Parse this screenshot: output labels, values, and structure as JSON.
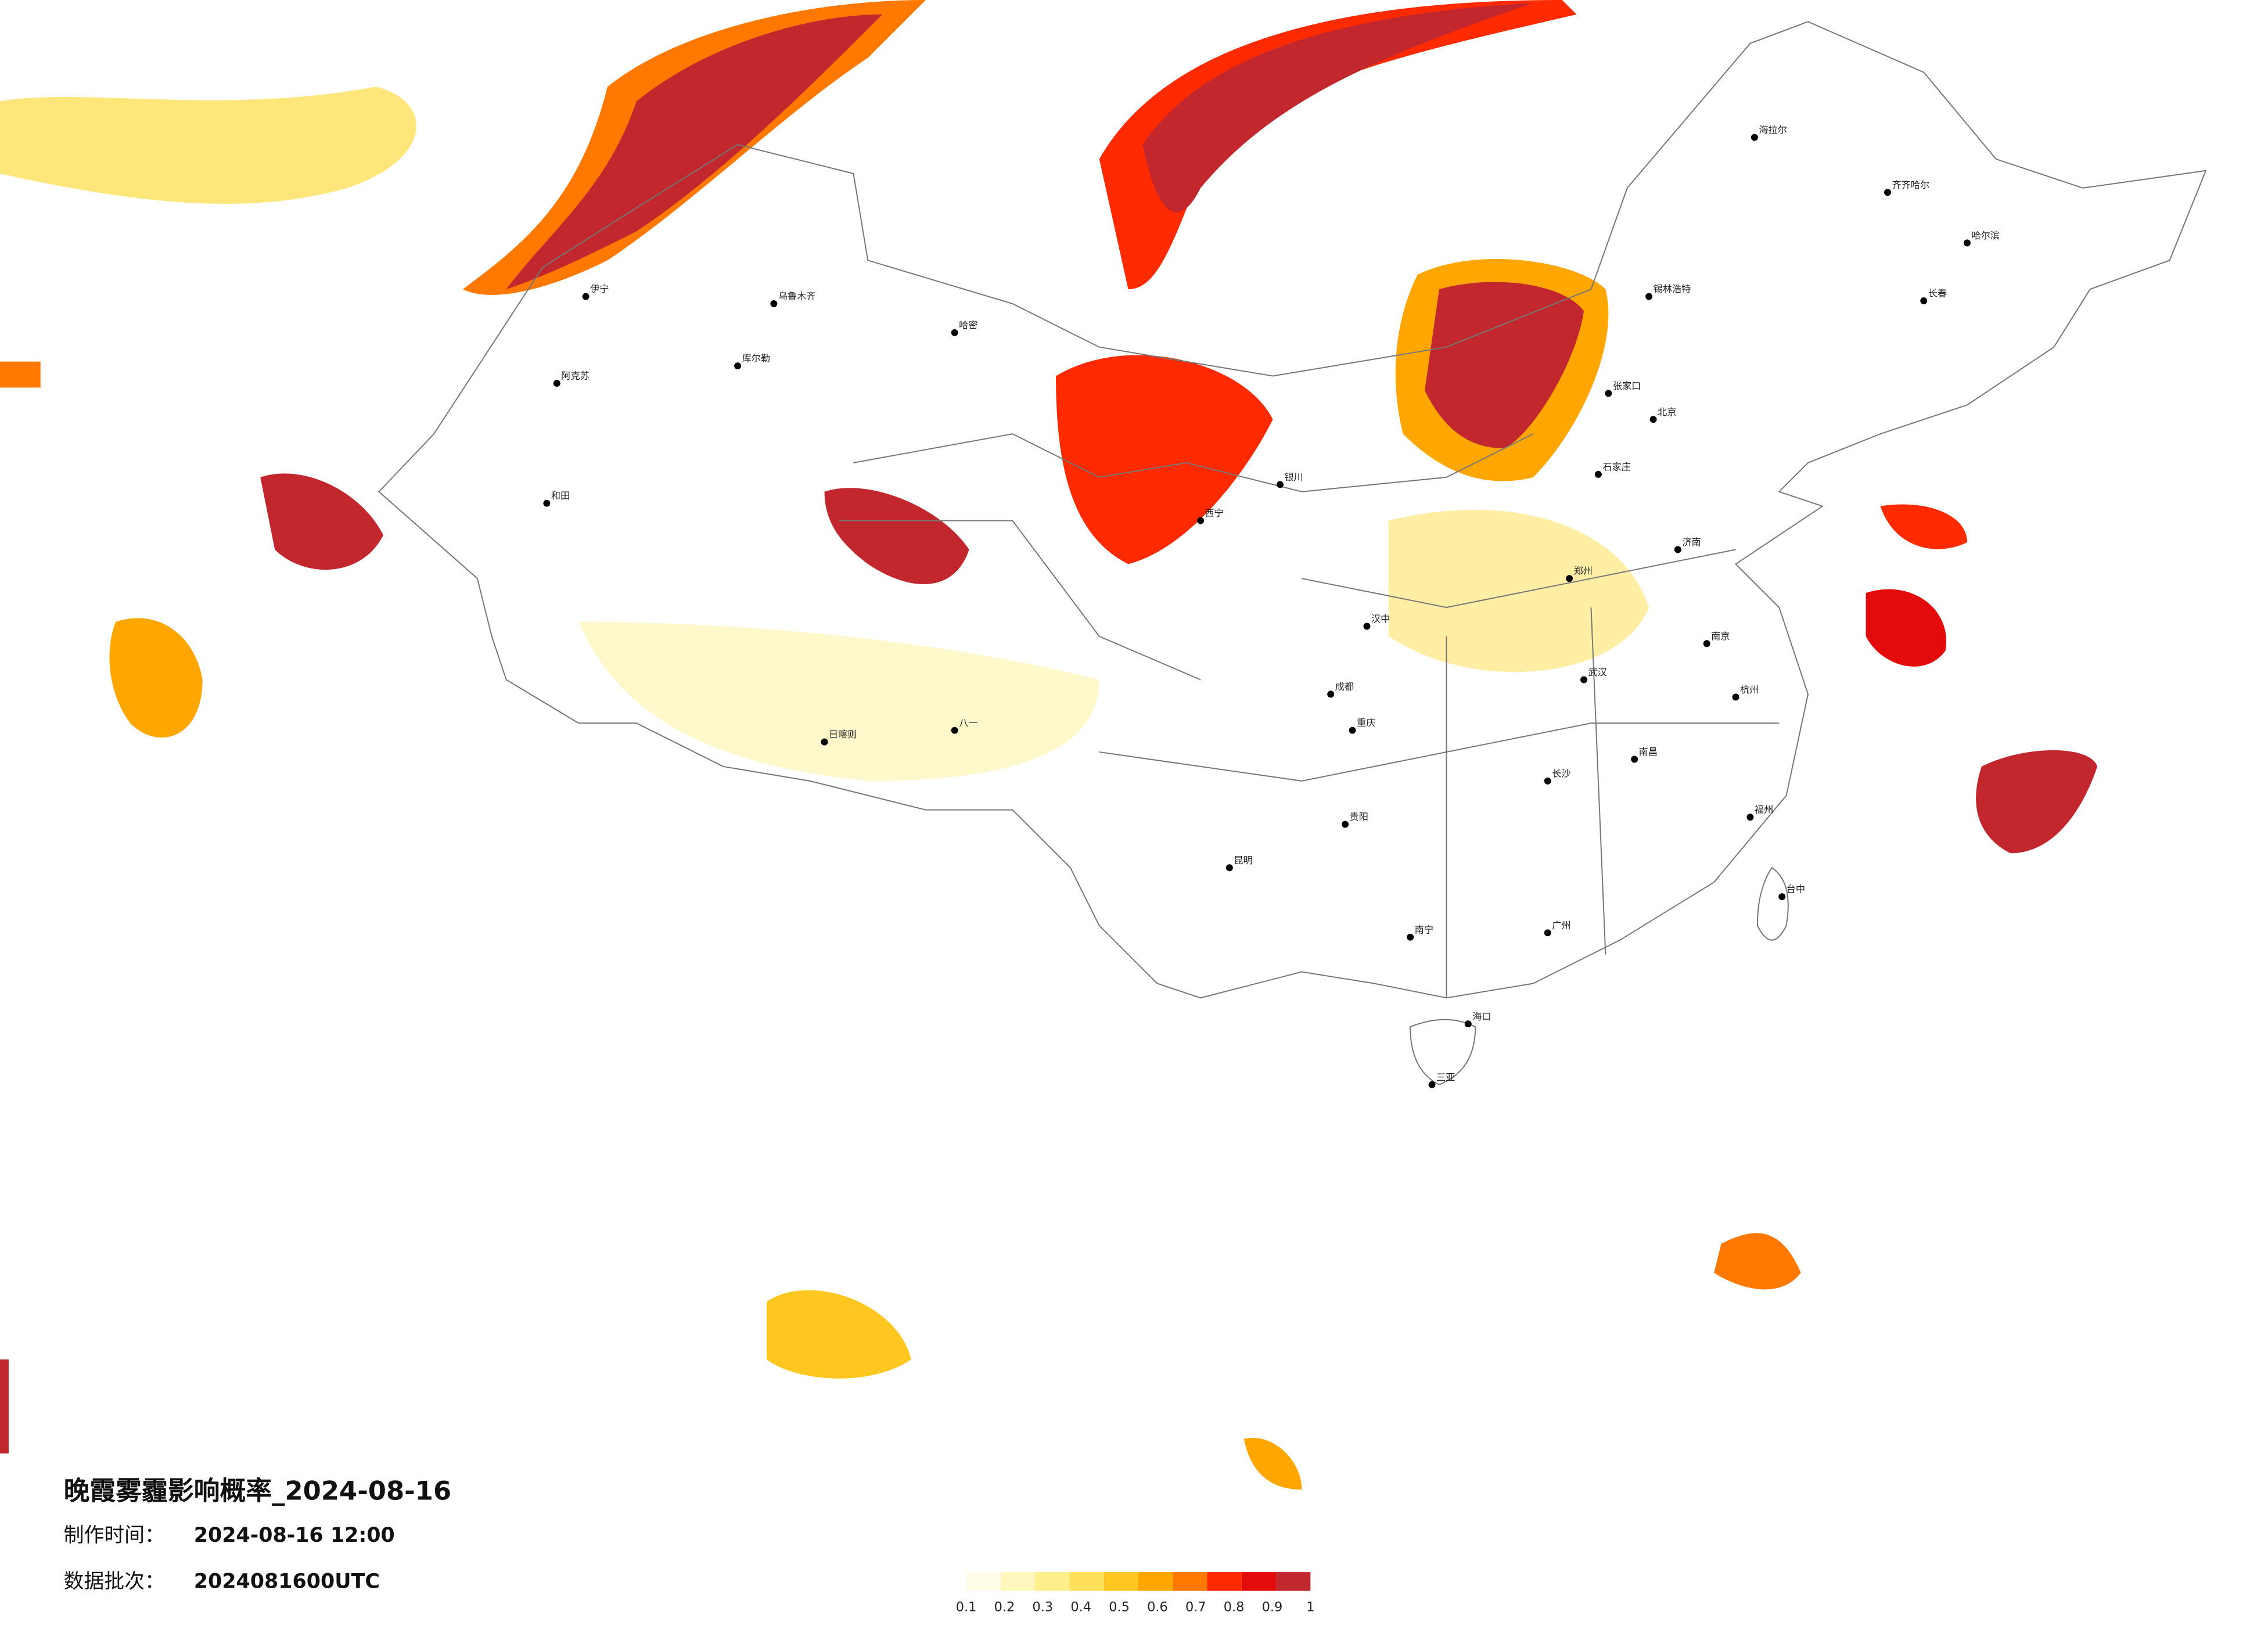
{
  "title": "晚霞雾霾影响概率_2024-08-16",
  "made_time": {
    "label": "制作时间：",
    "value": "2024-08-16 12:00"
  },
  "data_batch": {
    "label": "数据批次：",
    "value": "2024081600UTC"
  },
  "legend": {
    "ticks": [
      0.1,
      0.2,
      0.3,
      0.4,
      0.5,
      0.6,
      0.7,
      0.8,
      0.9,
      1
    ],
    "colors": [
      "#fffce8",
      "#fff6bd",
      "#ffef8c",
      "#ffe05a",
      "#ffc71f",
      "#ffa600",
      "#ff7800",
      "#ff2a00",
      "#e30b0b",
      "#c1272d"
    ]
  },
  "cities": [
    "伊宁",
    "阿克苏",
    "和田",
    "库尔勒",
    "乌鲁木齐",
    "哈密",
    "日喀则",
    "八一",
    "海拉尔",
    "齐齐哈尔",
    "哈尔滨",
    "长春",
    "锡林浩特",
    "张家口",
    "北京",
    "石家庄",
    "济南",
    "郑州",
    "汉中",
    "西宁",
    "银川",
    "成都",
    "重庆",
    "贵阳",
    "昆明",
    "南宁",
    "广州",
    "福州",
    "杭州",
    "南京",
    "武汉",
    "长沙",
    "南昌",
    "海口",
    "三亚",
    "台中"
  ]
}
